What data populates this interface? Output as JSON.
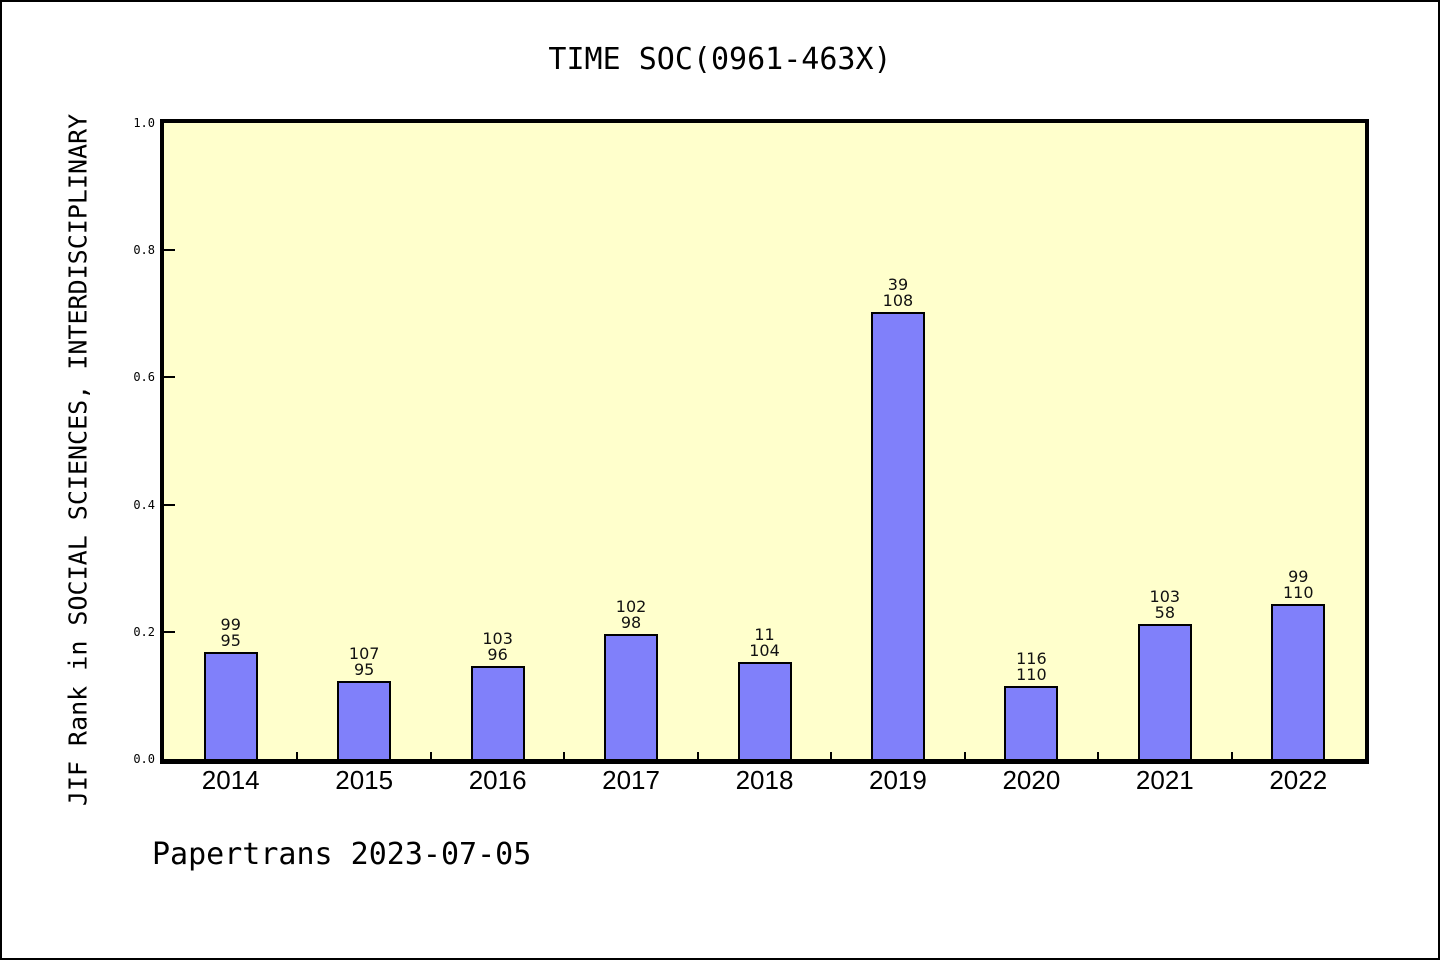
{
  "page": {
    "background": "#FFFFFF",
    "border_color": "#000000"
  },
  "chart_data": {
    "type": "bar",
    "title": "TIME SOC(0961-463X)",
    "ylabel": "JIF Rank in SOCIAL SCIENCES, INTERDISCIPLINARY",
    "xlabel": "",
    "categories": [
      "2014",
      "2015",
      "2016",
      "2017",
      "2018",
      "2019",
      "2020",
      "2021",
      "2022"
    ],
    "bar_value_labels": {
      "top": [
        "99",
        "107",
        "103",
        "102",
        "11",
        "39",
        "116",
        "103",
        "99"
      ],
      "bottom": [
        "95",
        "95",
        "96",
        "98",
        "104",
        "108",
        "110",
        "58",
        "110"
      ]
    },
    "bar_heights_axis_fraction": [
      0.168,
      0.123,
      0.147,
      0.196,
      0.153,
      0.703,
      0.114,
      0.213,
      0.243
    ],
    "ylim": [
      0.0,
      1.0
    ],
    "ytick_values": [
      0.0,
      0.2,
      0.4,
      0.6,
      0.8,
      1.0
    ],
    "ytick_labels": [
      "0.0",
      "0.2",
      "0.4",
      "0.6",
      "0.8",
      "1.0"
    ],
    "grid": false,
    "legend": "none",
    "colors": {
      "bar_fill": "#8080FA",
      "bar_border": "#000000",
      "plot_background": "#FFFFCC",
      "frame": "#000000",
      "text": "#000000"
    }
  },
  "footer": {
    "text": "Papertrans 2023-07-05"
  }
}
